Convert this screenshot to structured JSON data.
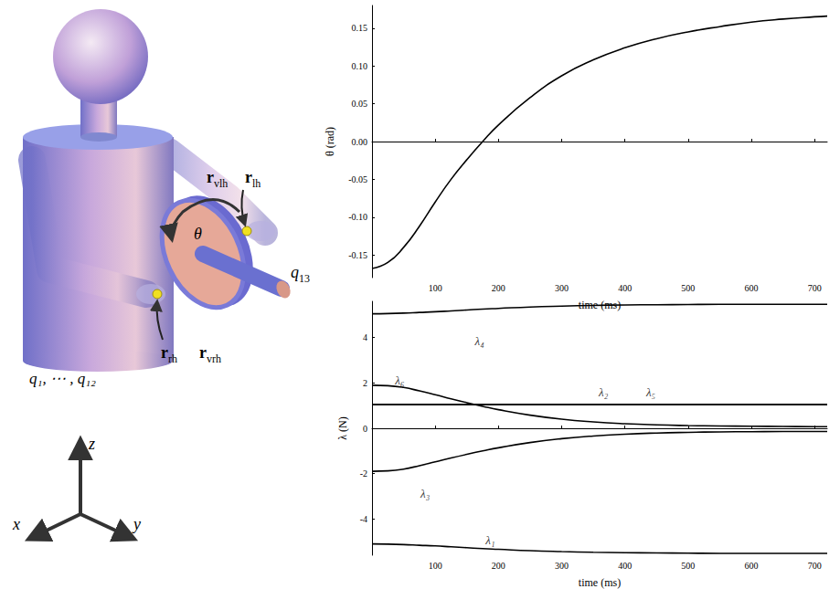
{
  "diagram": {
    "left_hand": [
      {
        "base": "r",
        "sub": "vlh"
      },
      {
        "base": "r",
        "sub": "lh"
      }
    ],
    "right_hand": [
      {
        "base": "r",
        "sub": "rh"
      },
      {
        "base": "r",
        "sub": "vrh"
      }
    ],
    "wheel_angle": "θ",
    "wheel_coordinate": {
      "base": "q",
      "sub": "13"
    },
    "body_coordinates": "q₁, ⋯ , q₁₂",
    "axes": [
      "x",
      "y",
      "z"
    ]
  },
  "chart_data": [
    {
      "type": "line",
      "x_label": "time (ms)",
      "y_label": "θ (rad)",
      "x": [
        0,
        25,
        50,
        75,
        100,
        125,
        150,
        175,
        200,
        250,
        300,
        350,
        400,
        450,
        500,
        550,
        600,
        650,
        700,
        720
      ],
      "series": [
        {
          "color": "#000000",
          "values": [
            -0.168,
            -0.16,
            -0.14,
            -0.112,
            -0.08,
            -0.05,
            -0.024,
            0.0,
            0.022,
            0.058,
            0.087,
            0.108,
            0.124,
            0.136,
            0.145,
            0.152,
            0.158,
            0.162,
            0.165,
            0.166
          ]
        }
      ],
      "xlim": [
        0,
        720
      ],
      "xticks": [
        100,
        200,
        300,
        400,
        500,
        600,
        700
      ],
      "ylim": [
        -0.18,
        0.18
      ],
      "yticks": [
        {
          "value": -0.15,
          "label": "-0.15"
        },
        {
          "value": -0.1,
          "label": "-0.10"
        },
        {
          "value": -0.05,
          "label": "-0.05"
        },
        {
          "value": 0,
          "label": "0.00"
        },
        {
          "value": 0.05,
          "label": "0.05"
        },
        {
          "value": 0.1,
          "label": "0.10"
        },
        {
          "value": 0.15,
          "label": "0.15"
        }
      ],
      "grid": false
    },
    {
      "type": "line",
      "x_label": "time (ms)",
      "y_label": "λ (N)",
      "x": [
        0,
        25,
        50,
        75,
        100,
        125,
        150,
        175,
        200,
        250,
        300,
        350,
        400,
        450,
        500,
        550,
        600,
        650,
        700,
        720
      ],
      "series": [
        {
          "color": "#000000",
          "values": [
            -5.1,
            -5.11,
            -5.13,
            -5.16,
            -5.19,
            -5.23,
            -5.27,
            -5.31,
            -5.34,
            -5.4,
            -5.44,
            -5.47,
            -5.49,
            -5.5,
            -5.51,
            -5.52,
            -5.52,
            -5.52,
            -5.52,
            -5.52
          ]
        },
        {
          "color": "#000000",
          "values": [
            1.05,
            1.05,
            1.05,
            1.05,
            1.05,
            1.05,
            1.05,
            1.05,
            1.05,
            1.05,
            1.05,
            1.05,
            1.05,
            1.05,
            1.05,
            1.05,
            1.05,
            1.05,
            1.05,
            1.05
          ]
        },
        {
          "color": "#000000",
          "values": [
            -1.9,
            -1.88,
            -1.8,
            -1.65,
            -1.48,
            -1.31,
            -1.15,
            -1.0,
            -0.86,
            -0.63,
            -0.46,
            -0.34,
            -0.26,
            -0.21,
            -0.18,
            -0.16,
            -0.15,
            -0.14,
            -0.14,
            -0.14
          ]
        },
        {
          "color": "#000000",
          "values": [
            5.05,
            5.06,
            5.08,
            5.11,
            5.14,
            5.18,
            5.22,
            5.26,
            5.29,
            5.35,
            5.39,
            5.42,
            5.44,
            5.45,
            5.46,
            5.47,
            5.47,
            5.47,
            5.47,
            5.47
          ]
        },
        {
          "color": "#000000",
          "values": [
            1.05,
            1.05,
            1.05,
            1.05,
            1.05,
            1.05,
            1.05,
            1.05,
            1.05,
            1.05,
            1.05,
            1.05,
            1.05,
            1.05,
            1.05,
            1.05,
            1.05,
            1.05,
            1.05,
            1.05
          ]
        },
        {
          "color": "#000000",
          "values": [
            1.9,
            1.88,
            1.8,
            1.65,
            1.48,
            1.3,
            1.13,
            0.97,
            0.82,
            0.58,
            0.4,
            0.28,
            0.2,
            0.15,
            0.12,
            0.1,
            0.09,
            0.08,
            0.07,
            0.07
          ]
        }
      ],
      "annotations": [
        {
          "text": "λ₄",
          "x": 170,
          "y": 3.85
        },
        {
          "text": "λ₆",
          "x": 44,
          "y": 2.1
        },
        {
          "text": "λ₂",
          "x": 366,
          "y": 1.6
        },
        {
          "text": "λ₅",
          "x": 441,
          "y": 1.6
        },
        {
          "text": "λ₃",
          "x": 84,
          "y": -2.9
        },
        {
          "text": "λ₁",
          "x": 187,
          "y": -4.95
        }
      ],
      "xlim": [
        0,
        720
      ],
      "xticks": [
        100,
        200,
        300,
        400,
        500,
        600,
        700
      ],
      "ylim": [
        -5.6,
        5.6
      ],
      "yticks": [
        -4,
        -2,
        0,
        2,
        4
      ],
      "grid": false
    }
  ]
}
